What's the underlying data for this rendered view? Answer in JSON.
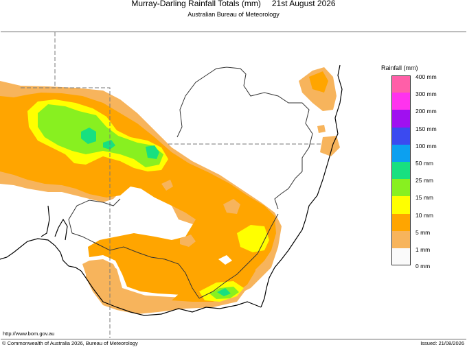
{
  "header": {
    "title": "Murray-Darling Rainfall Totals (mm)",
    "date": "21st August 2026",
    "subtitle": "Australian Bureau of Meteorology"
  },
  "legend": {
    "title": "Rainfall (mm)",
    "items": [
      {
        "label": "400 mm",
        "color": "#ff5fa8"
      },
      {
        "label": "300 mm",
        "color": "#ff33ee"
      },
      {
        "label": "200 mm",
        "color": "#a010f0"
      },
      {
        "label": "150 mm",
        "color": "#3b4af0"
      },
      {
        "label": "100 mm",
        "color": "#0ca0f0"
      },
      {
        "label": "50 mm",
        "color": "#18e080"
      },
      {
        "label": "25 mm",
        "color": "#88f020"
      },
      {
        "label": "15 mm",
        "color": "#ffff00"
      },
      {
        "label": "10 mm",
        "color": "#ffa500"
      },
      {
        "label": "5 mm",
        "color": "#f7b45c"
      },
      {
        "label": "1 mm",
        "color": "#fafafa"
      }
    ],
    "bottom_label": "0 mm"
  },
  "footer": {
    "url": "http://www.bom.gov.au",
    "copyright": "© Commonwealth of Australia 2026, Bureau of Meteorology",
    "issued": "Issued: 21/08/2026"
  }
}
